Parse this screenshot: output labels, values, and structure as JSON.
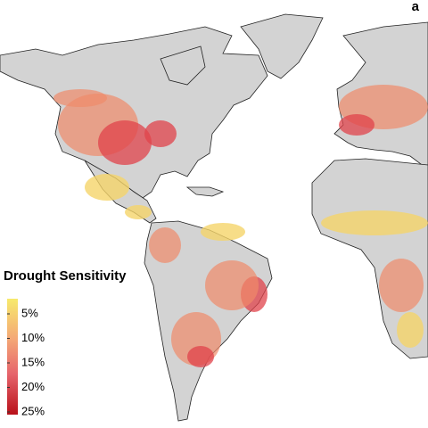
{
  "panel_label": "a",
  "legend": {
    "title": "Drought Sensitivity",
    "ticks": [
      {
        "value": 5,
        "label": "5%"
      },
      {
        "value": 10,
        "label": "10%"
      },
      {
        "value": 15,
        "label": "15%"
      },
      {
        "value": 20,
        "label": "20%"
      },
      {
        "value": 25,
        "label": "25%"
      }
    ]
  }
}
